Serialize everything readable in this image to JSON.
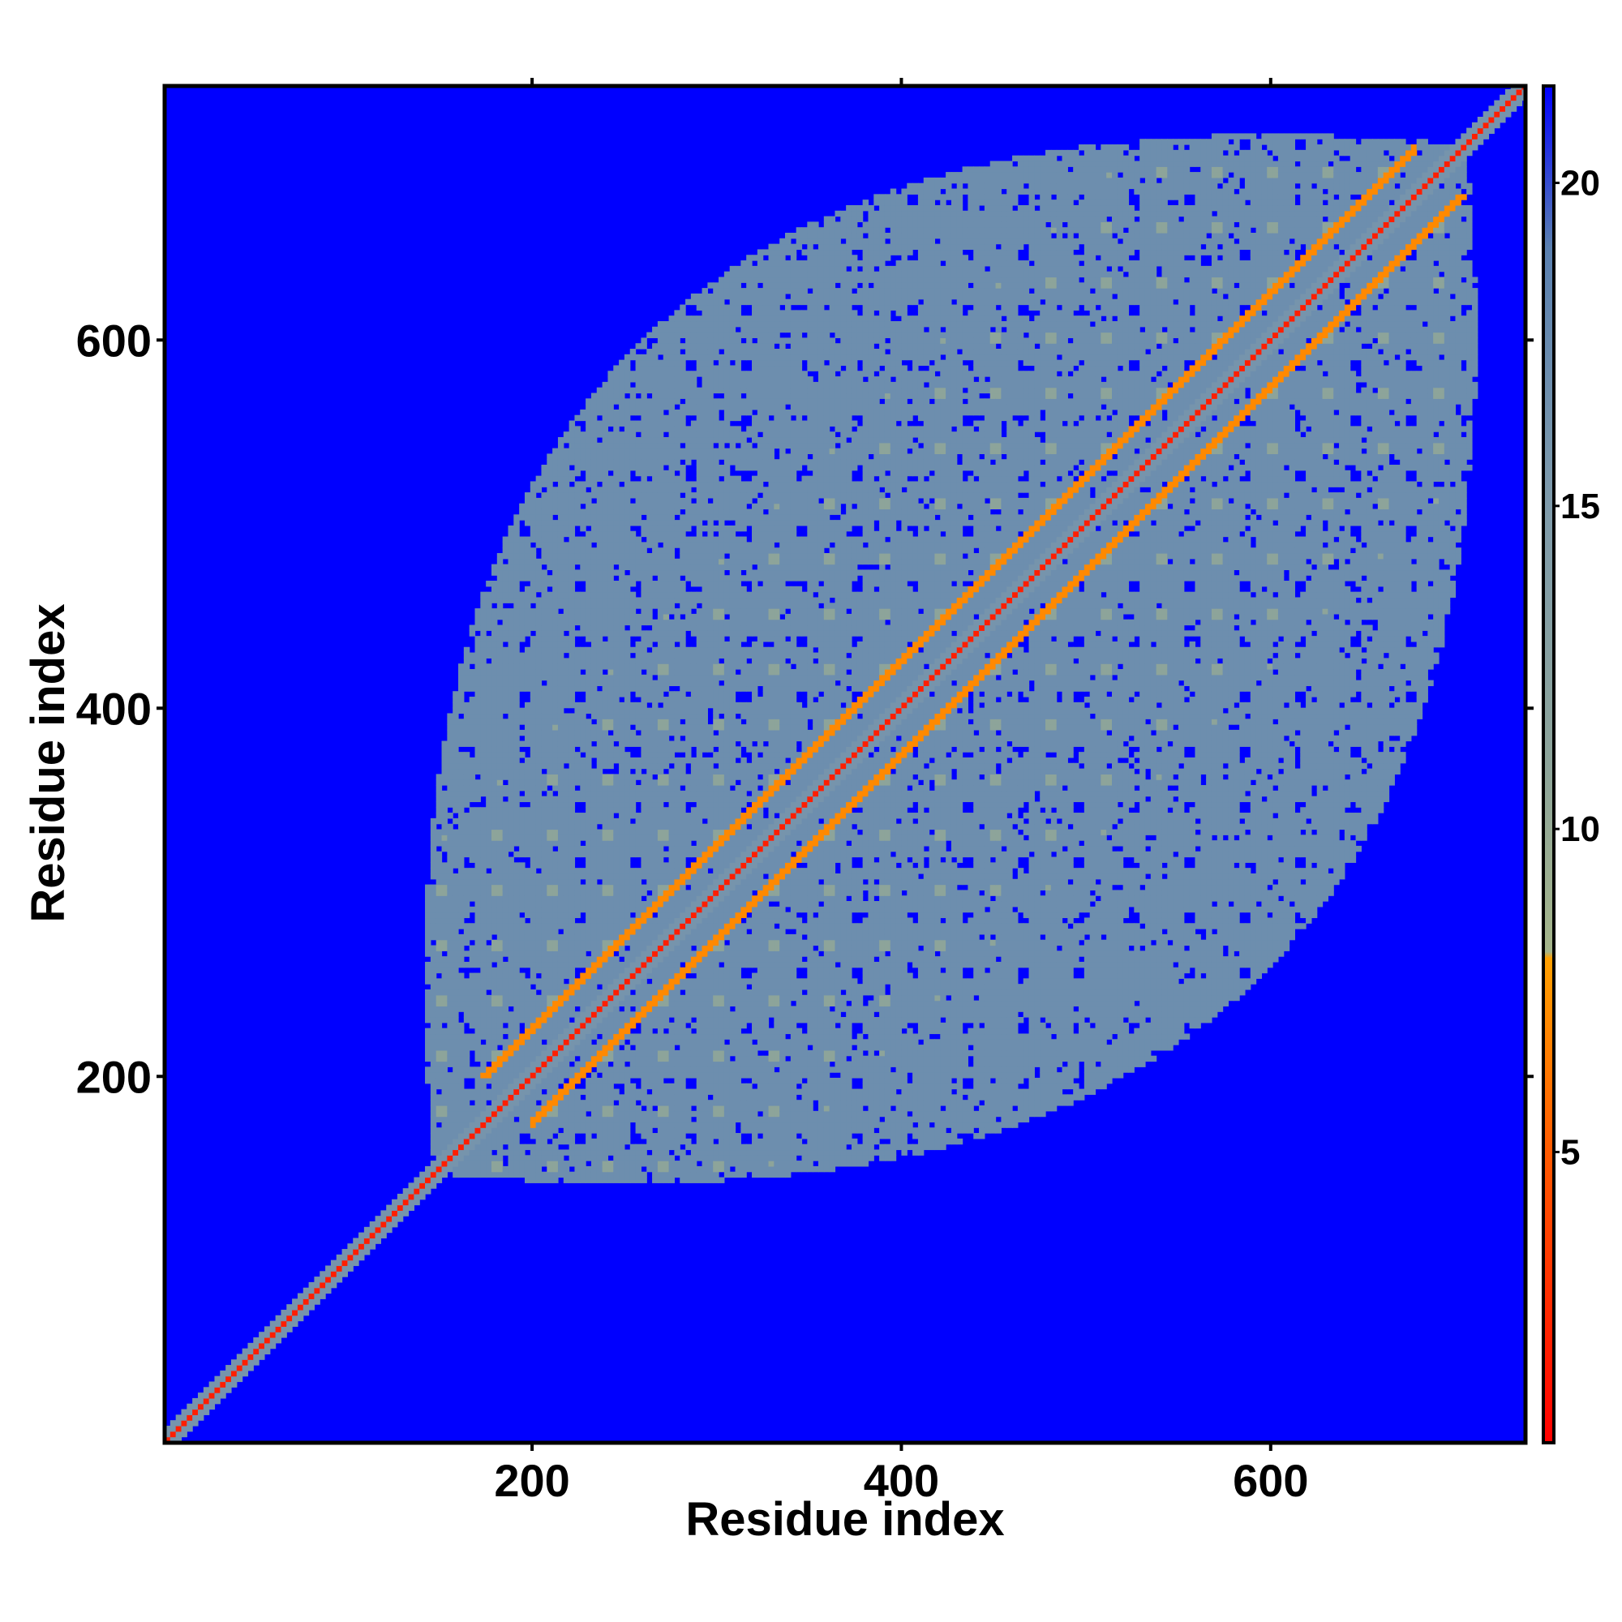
{
  "chart_data": {
    "type": "heatmap",
    "title": "",
    "xlabel": "Residue index",
    "ylabel": "Residue index",
    "xlim": [
      1,
      738
    ],
    "ylim": [
      1,
      738
    ],
    "x_ticks": [
      200,
      400,
      600
    ],
    "y_ticks": [
      200,
      400,
      600
    ],
    "colorbar": {
      "range": [
        0.5,
        21.5
      ],
      "ticks": [
        5,
        10,
        15,
        20
      ],
      "stops": [
        {
          "value": 0.5,
          "color": "#ff0000"
        },
        {
          "value": 5,
          "color": "#ff5a00"
        },
        {
          "value": 8,
          "color": "#ffa000"
        },
        {
          "value": 8.1,
          "color": "#a5b58a"
        },
        {
          "value": 11,
          "color": "#8da49a"
        },
        {
          "value": 15,
          "color": "#7f9bab"
        },
        {
          "value": 19,
          "color": "#5a80b0"
        },
        {
          "value": 21.5,
          "color": "#0000ff"
        }
      ]
    },
    "background_value": 21.5,
    "structure": {
      "diagonal_value": 2,
      "flanking_band_offsets": [
        26,
        -26
      ],
      "flanking_band_value": 7,
      "flanking_band_range": [
        185,
        690
      ],
      "near_diagonal_halfwidth": 8,
      "near_diagonal_value": 16,
      "contact_region_residues": [
        150,
        700
      ],
      "contact_region_value": 17,
      "periodic_spot_spacing": 30
    }
  }
}
